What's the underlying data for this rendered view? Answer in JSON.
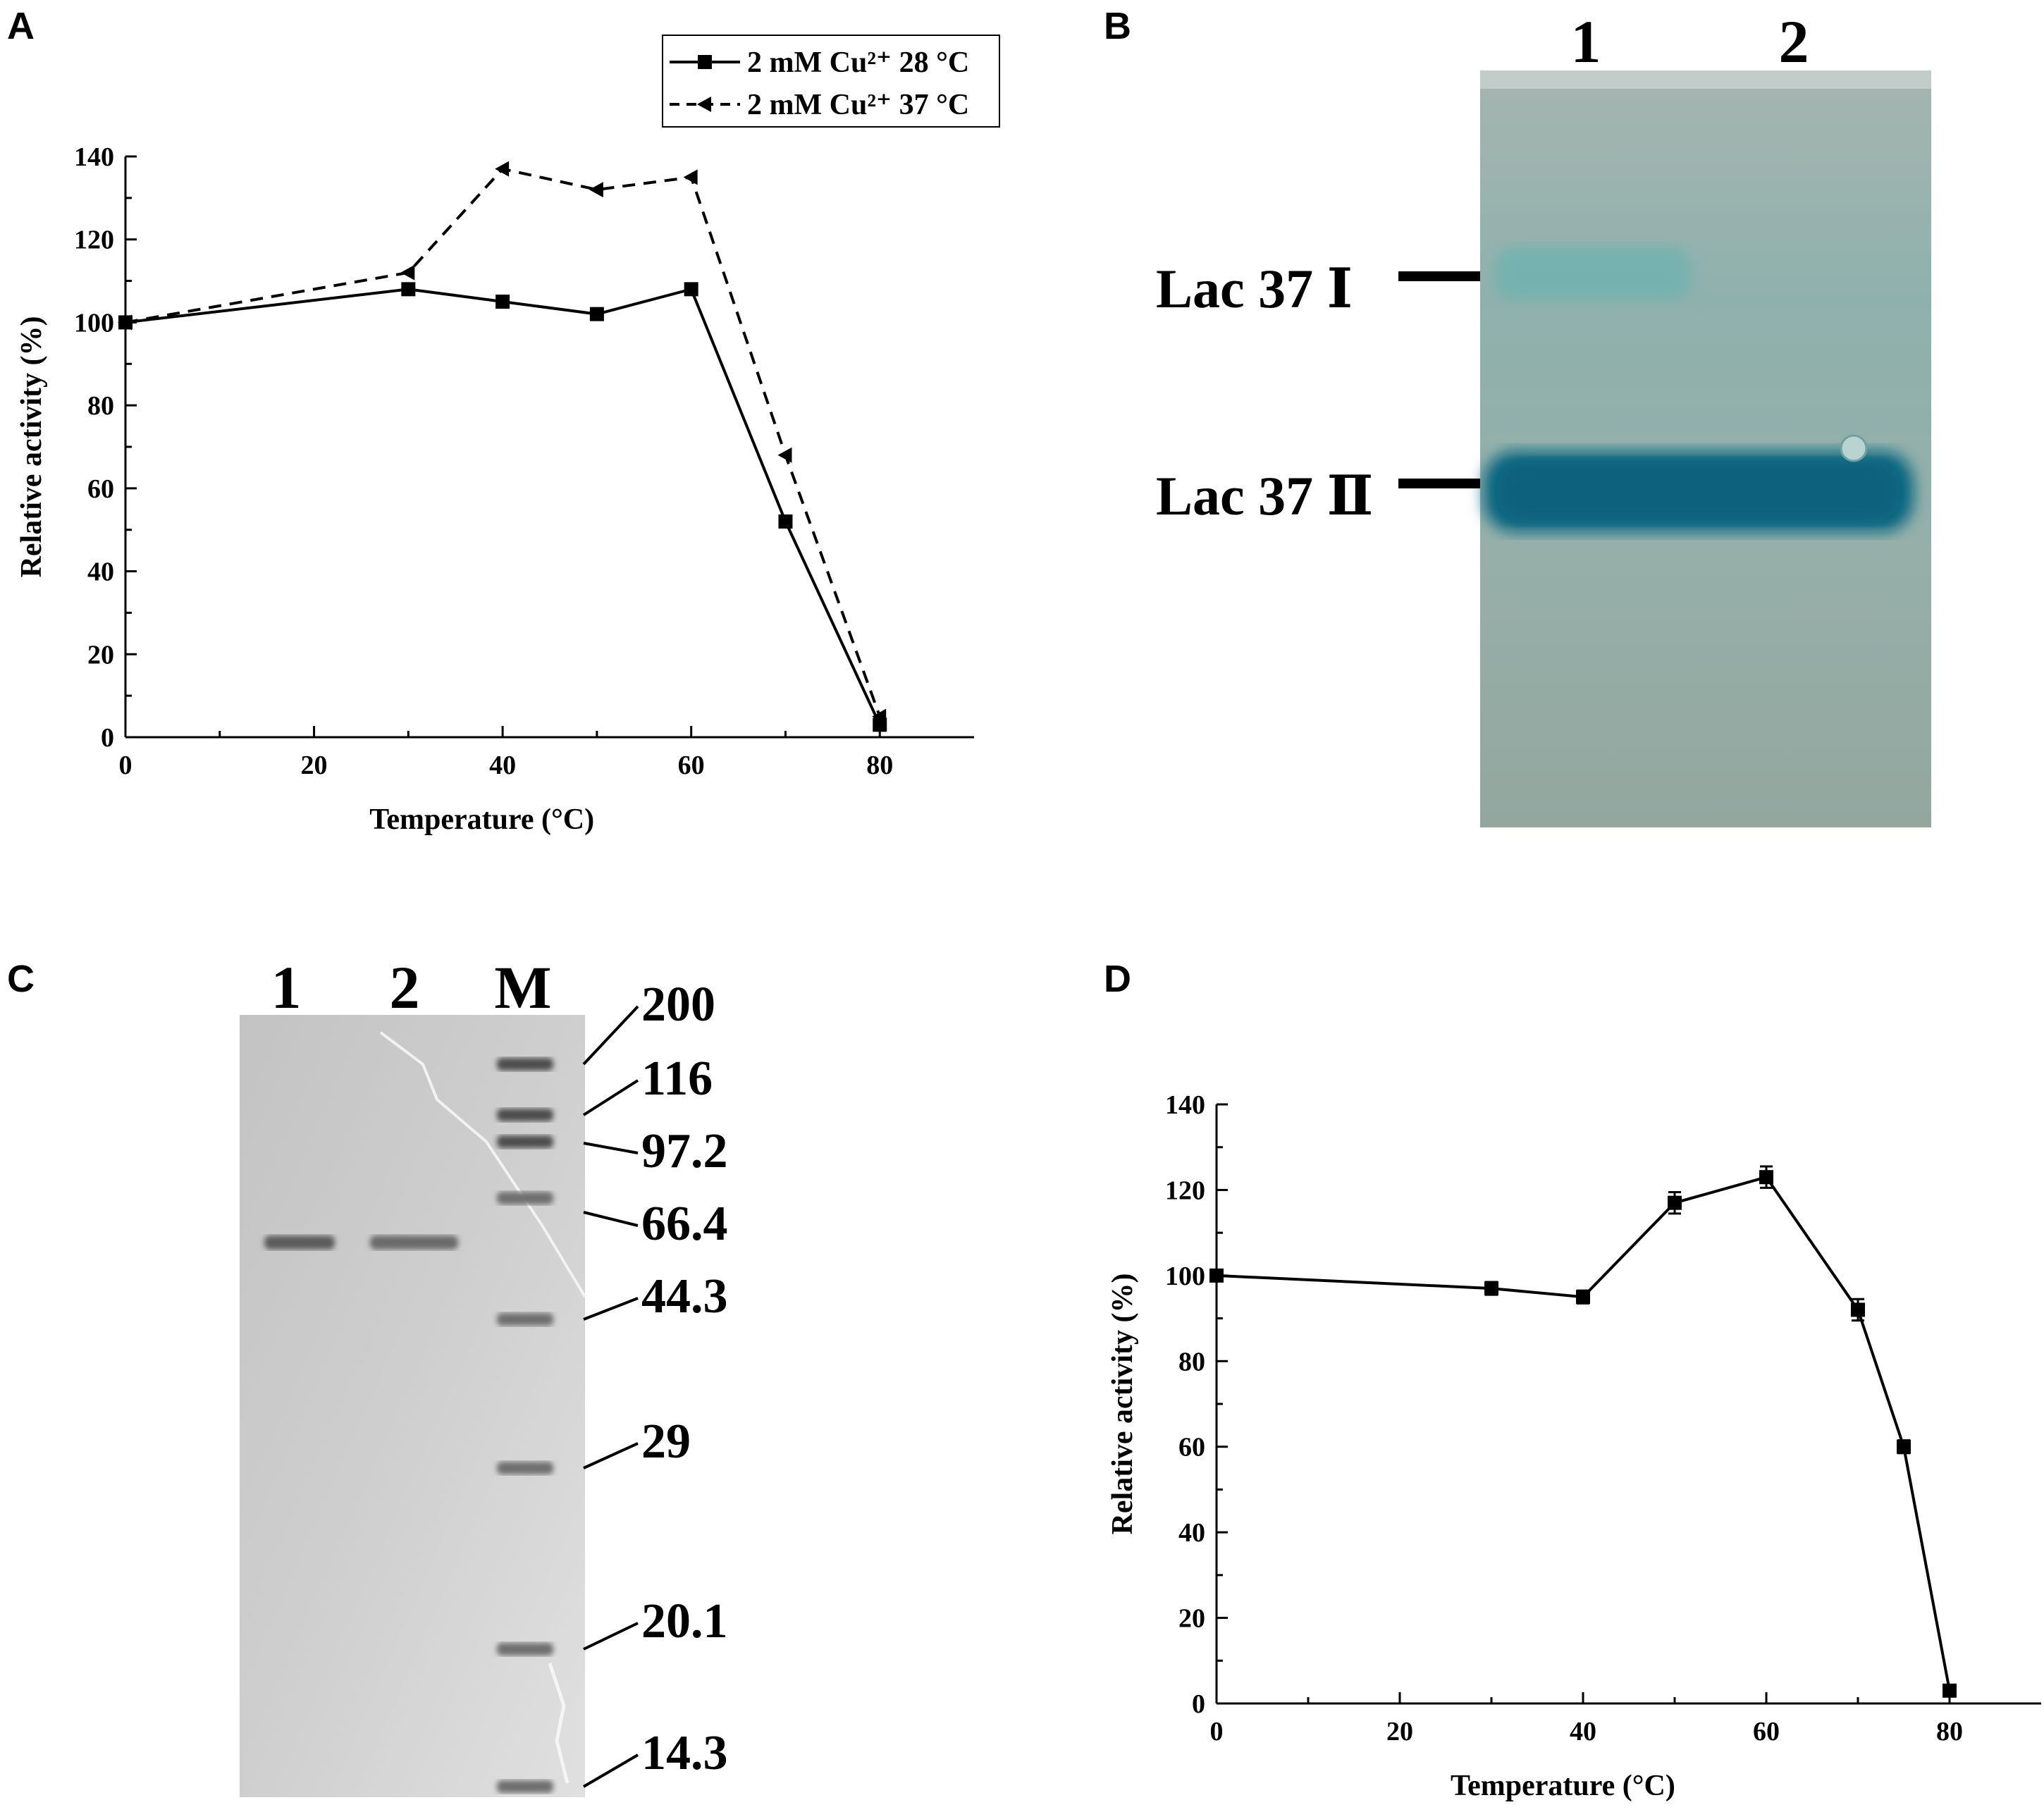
{
  "panels": {
    "a": {
      "letter": "A"
    },
    "b": {
      "letter": "B"
    },
    "c": {
      "letter": "C"
    },
    "d": {
      "letter": "D"
    }
  },
  "chart_data": [
    {
      "panel": "A",
      "type": "line",
      "xlabel": "Temperature (°C)",
      "ylabel": "Relative activity (%)",
      "xlim": [
        0,
        90
      ],
      "ylim": [
        0,
        140
      ],
      "xticks": [
        0,
        20,
        40,
        60,
        80
      ],
      "yticks": [
        0,
        20,
        40,
        60,
        80,
        100,
        120,
        140
      ],
      "grid": false,
      "legend_position": "top-right",
      "series": [
        {
          "name": "2 mM Cu²⁺ 28 °C",
          "marker": "square",
          "line_style": "solid",
          "x": [
            0,
            30,
            40,
            50,
            60,
            70,
            80
          ],
          "y": [
            100,
            108,
            105,
            102,
            108,
            52,
            3
          ]
        },
        {
          "name": "2 mM Cu²⁺ 37 °C",
          "marker": "triangle-left",
          "line_style": "dashed",
          "x": [
            0,
            30,
            40,
            50,
            60,
            70,
            80
          ],
          "y": [
            100,
            112,
            137,
            132,
            135,
            68,
            5
          ]
        }
      ]
    },
    {
      "panel": "D",
      "type": "line",
      "xlabel": "Temperature (°C)",
      "ylabel": "Relative activity (%)",
      "xlim": [
        0,
        90
      ],
      "ylim": [
        0,
        140
      ],
      "xticks": [
        0,
        20,
        40,
        60,
        80
      ],
      "yticks": [
        0,
        20,
        40,
        60,
        80,
        100,
        120,
        140
      ],
      "grid": false,
      "series": [
        {
          "marker": "square",
          "line_style": "solid",
          "x": [
            0,
            30,
            40,
            50,
            60,
            70,
            75,
            80
          ],
          "y": [
            100,
            97,
            95,
            117,
            123,
            92,
            60,
            3
          ],
          "error": [
            0,
            1.5,
            1.5,
            2.5,
            2.5,
            2.5,
            1.5,
            0
          ]
        }
      ]
    }
  ],
  "gel_b": {
    "lanes": [
      "1",
      "2"
    ],
    "bands": [
      "Lac 37 Ⅰ",
      "Lac 37 Ⅱ"
    ],
    "colors": {
      "background": "#93a9a3",
      "band": "#0e6c82"
    }
  },
  "gel_c": {
    "lanes": [
      "1",
      "2",
      "M"
    ],
    "markers": [
      "200",
      "116",
      "97.2",
      "66.4",
      "44.3",
      "29",
      "20.1",
      "14.3"
    ]
  }
}
